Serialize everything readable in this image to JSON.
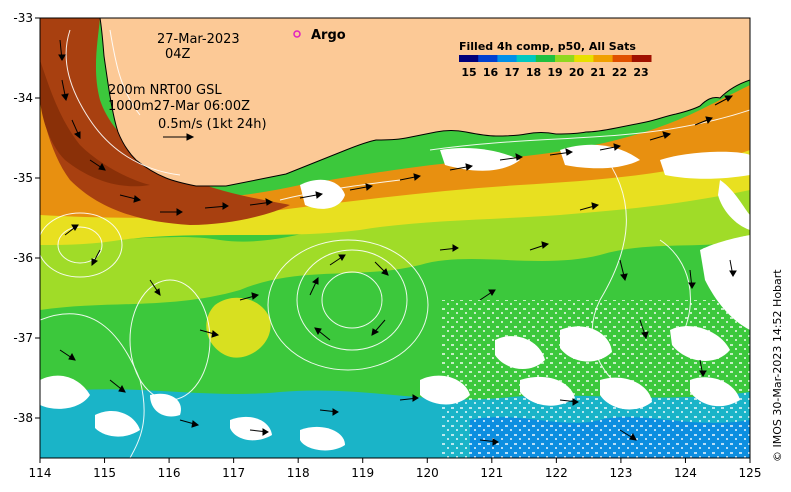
{
  "map": {
    "lon_ticks": [
      "114",
      "115",
      "116",
      "117",
      "118",
      "119",
      "120",
      "121",
      "122",
      "123",
      "124",
      "125"
    ],
    "lat_ticks": [
      "-33",
      "-34",
      "-35",
      "-36",
      "-37",
      "-38"
    ],
    "lon_range": [
      114,
      125
    ],
    "lat_range": [
      -38.5,
      -33
    ]
  },
  "annotations": {
    "date": "27-Mar-2023",
    "time": "04Z",
    "depth_line1": "200m  NRT00 GSL",
    "depth_line2": "1000m27-Mar 06:00Z",
    "scale_vector": "0.5m/s (1kt 24h)"
  },
  "legend": {
    "argo": "Argo",
    "argo_color": "#e020c0",
    "colorbar_title": "Filled 4h comp, p50, All Sats",
    "colorbar_labels": [
      "15",
      "16",
      "17",
      "18",
      "19",
      "20",
      "21",
      "22",
      "23"
    ],
    "colorbar_colors": [
      "#00007a",
      "#0040d0",
      "#0090e8",
      "#00c8c0",
      "#20c040",
      "#90d820",
      "#e8e000",
      "#f0a000",
      "#e05000",
      "#a01000"
    ]
  },
  "colors": {
    "land": "#fcc996",
    "sst_blue": "#1ab4c8",
    "sst_green": "#3cc83c",
    "sst_yellowgreen": "#a0dc28",
    "sst_yellow": "#e8e020",
    "sst_orange": "#e89010",
    "sst_red": "#a84010"
  },
  "credit": "© IMOS 30-Mar-2023 14:52 Hobart"
}
